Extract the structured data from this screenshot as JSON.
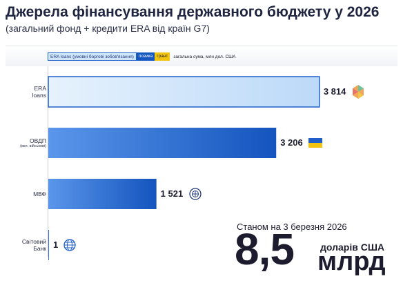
{
  "header": {
    "title": "Джерела фінансування державного бюджету у 2026",
    "subtitle": "(загальний фонд + кредити ERA від країн G7)"
  },
  "legend": {
    "era_loans": "ERA loans (умовні боргові зобов'язання)",
    "loan": "позика",
    "grant": "грант",
    "total": "загальна сума, млн дол. США"
  },
  "colors": {
    "era_fill": "#cfe5fb",
    "era_border": "#1f5fc7",
    "loan_dark": "#1557c0",
    "loan_mid": "#4a8ae6",
    "grant": "#f3c40f"
  },
  "chart_data": {
    "type": "bar",
    "orientation": "horizontal",
    "categories": [
      {
        "label": "ERA\nloans",
        "sub": "",
        "value": 3814,
        "value_label": "3 814",
        "style": "era",
        "icon": "era-logo-icon"
      },
      {
        "label": "ОВДП",
        "sub": "(вкл. військові)",
        "value": 3206,
        "value_label": "3 206",
        "style": "loan",
        "icon": "ukraine-flag-icon"
      },
      {
        "label": "МВФ",
        "sub": "",
        "value": 1521,
        "value_label": "1 521",
        "style": "loan",
        "icon": "imf-logo-icon"
      },
      {
        "label": "Світовий\nБанк",
        "sub": "",
        "value": 1,
        "value_label": "1",
        "style": "loan",
        "icon": "world-bank-logo-icon"
      }
    ],
    "xlim": [
      0,
      4000
    ],
    "grid": false,
    "legend_position": "top"
  },
  "summary": {
    "date_text": "Станом на 3 березня 2026",
    "total_number": "8,5",
    "unit_line1": "доларів США",
    "unit_line2": "млрд"
  }
}
